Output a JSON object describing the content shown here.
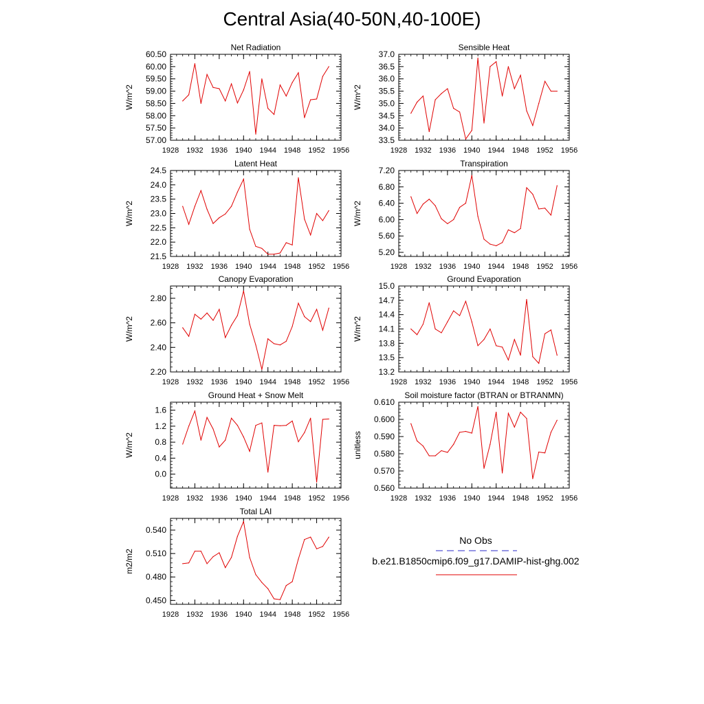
{
  "page": {
    "title": "Central Asia(40-50N,40-100E)"
  },
  "legend": {
    "obs_label": "No Obs",
    "obs_color": "#2b2bc8",
    "model_label": "b.e21.B1850cmip6.f09_g17.DAMIP-hist-ghg.002",
    "model_color": "#e00000"
  },
  "chart_data": [
    {
      "type": "line",
      "title": "Net Radiation",
      "ylabel": "W/m^2",
      "xlim": [
        1928,
        1956
      ],
      "ylim": [
        57.0,
        60.5
      ],
      "xticks": [
        1928,
        1932,
        1936,
        1940,
        1944,
        1948,
        1952,
        1956
      ],
      "yticks": [
        "57.00",
        "57.50",
        "58.00",
        "58.50",
        "59.00",
        "59.50",
        "60.00",
        "60.50"
      ],
      "x": [
        1930,
        1931,
        1932,
        1933,
        1934,
        1935,
        1936,
        1937,
        1938,
        1939,
        1940,
        1941,
        1942,
        1943,
        1944,
        1945,
        1946,
        1947,
        1948,
        1949,
        1950,
        1951,
        1952,
        1953,
        1954
      ],
      "values": [
        58.6,
        58.85,
        60.12,
        58.5,
        59.68,
        59.15,
        59.1,
        58.6,
        59.3,
        58.52,
        59.05,
        59.8,
        57.25,
        59.5,
        58.3,
        58.05,
        59.25,
        58.8,
        59.35,
        59.75,
        57.92,
        58.65,
        58.68,
        59.6,
        60.0
      ],
      "color": "#e00000"
    },
    {
      "type": "line",
      "title": "Sensible Heat",
      "ylabel": "W/m^2",
      "xlim": [
        1928,
        1956
      ],
      "ylim": [
        33.5,
        37.0
      ],
      "xticks": [
        1928,
        1932,
        1936,
        1940,
        1944,
        1948,
        1952,
        1956
      ],
      "yticks": [
        "33.5",
        "34.0",
        "34.5",
        "35.0",
        "35.5",
        "36.0",
        "36.5",
        "37.0"
      ],
      "x": [
        1930,
        1931,
        1932,
        1933,
        1934,
        1935,
        1936,
        1937,
        1938,
        1939,
        1940,
        1941,
        1942,
        1943,
        1944,
        1945,
        1946,
        1947,
        1948,
        1949,
        1950,
        1951,
        1952,
        1953,
        1954
      ],
      "values": [
        34.6,
        35.05,
        35.3,
        33.85,
        35.15,
        35.4,
        35.6,
        34.8,
        34.65,
        33.55,
        33.9,
        36.85,
        34.2,
        36.5,
        36.7,
        35.3,
        36.5,
        35.6,
        36.15,
        34.7,
        34.1,
        35.0,
        35.9,
        35.5,
        35.5
      ],
      "color": "#e00000"
    },
    {
      "type": "line",
      "title": "Latent Heat",
      "ylabel": "W/m^2",
      "xlim": [
        1928,
        1956
      ],
      "ylim": [
        21.5,
        24.5
      ],
      "xticks": [
        1928,
        1932,
        1936,
        1940,
        1944,
        1948,
        1952,
        1956
      ],
      "yticks": [
        "21.5",
        "22.0",
        "22.5",
        "23.0",
        "23.5",
        "24.0",
        "24.5"
      ],
      "x": [
        1930,
        1931,
        1932,
        1933,
        1934,
        1935,
        1936,
        1937,
        1938,
        1939,
        1940,
        1941,
        1942,
        1943,
        1944,
        1945,
        1946,
        1947,
        1948,
        1949,
        1950,
        1951,
        1952,
        1953,
        1954
      ],
      "values": [
        23.25,
        22.62,
        23.25,
        23.8,
        23.15,
        22.65,
        22.85,
        22.98,
        23.25,
        23.75,
        24.2,
        22.45,
        21.85,
        21.78,
        21.58,
        21.58,
        21.62,
        21.98,
        21.9,
        24.25,
        22.8,
        22.25,
        23.0,
        22.75,
        23.1
      ],
      "color": "#e00000"
    },
    {
      "type": "line",
      "title": "Transpiration",
      "ylabel": "W/m^2",
      "xlim": [
        1928,
        1956
      ],
      "ylim": [
        5.1,
        7.2
      ],
      "xticks": [
        1928,
        1932,
        1936,
        1940,
        1944,
        1948,
        1952,
        1956
      ],
      "yticks": [
        "5.20",
        "5.60",
        "6.00",
        "6.40",
        "6.80",
        "7.20"
      ],
      "x": [
        1930,
        1931,
        1932,
        1933,
        1934,
        1935,
        1936,
        1937,
        1938,
        1939,
        1940,
        1941,
        1942,
        1943,
        1944,
        1945,
        1946,
        1947,
        1948,
        1949,
        1950,
        1951,
        1952,
        1953,
        1954
      ],
      "values": [
        6.56,
        6.15,
        6.38,
        6.5,
        6.34,
        6.02,
        5.9,
        6.0,
        6.3,
        6.4,
        7.08,
        6.08,
        5.52,
        5.4,
        5.36,
        5.44,
        5.75,
        5.68,
        5.78,
        6.78,
        6.62,
        6.26,
        6.28,
        6.11,
        6.83
      ],
      "color": "#e00000"
    },
    {
      "type": "line",
      "title": "Canopy Evaporation",
      "ylabel": "W/m^2",
      "xlim": [
        1928,
        1956
      ],
      "ylim": [
        2.2,
        2.9
      ],
      "xticks": [
        1928,
        1932,
        1936,
        1940,
        1944,
        1948,
        1952,
        1956
      ],
      "yticks": [
        "2.20",
        "2.40",
        "2.60",
        "2.80"
      ],
      "x": [
        1930,
        1931,
        1932,
        1933,
        1934,
        1935,
        1936,
        1937,
        1938,
        1939,
        1940,
        1941,
        1942,
        1943,
        1944,
        1945,
        1946,
        1947,
        1948,
        1949,
        1950,
        1951,
        1952,
        1953,
        1954
      ],
      "values": [
        2.56,
        2.49,
        2.67,
        2.63,
        2.68,
        2.62,
        2.71,
        2.48,
        2.58,
        2.66,
        2.86,
        2.59,
        2.42,
        2.22,
        2.47,
        2.43,
        2.42,
        2.45,
        2.57,
        2.76,
        2.65,
        2.61,
        2.71,
        2.54,
        2.72
      ],
      "color": "#e00000"
    },
    {
      "type": "line",
      "title": "Ground Evaporation",
      "ylabel": "W/m^2",
      "xlim": [
        1928,
        1956
      ],
      "ylim": [
        13.2,
        15.0
      ],
      "xticks": [
        1928,
        1932,
        1936,
        1940,
        1944,
        1948,
        1952,
        1956
      ],
      "yticks": [
        "13.2",
        "13.5",
        "13.8",
        "14.1",
        "14.4",
        "14.7",
        "15.0"
      ],
      "x": [
        1930,
        1931,
        1932,
        1933,
        1934,
        1935,
        1936,
        1937,
        1938,
        1939,
        1940,
        1941,
        1942,
        1943,
        1944,
        1945,
        1946,
        1947,
        1948,
        1949,
        1950,
        1951,
        1952,
        1953,
        1954
      ],
      "values": [
        14.1,
        13.98,
        14.2,
        14.65,
        14.1,
        14.02,
        14.25,
        14.48,
        14.38,
        14.68,
        14.25,
        13.75,
        13.88,
        14.1,
        13.75,
        13.72,
        13.45,
        13.88,
        13.55,
        14.72,
        13.52,
        13.38,
        14.0,
        14.08,
        13.55
      ],
      "color": "#e00000"
    },
    {
      "type": "line",
      "title": "Ground Heat + Snow Melt",
      "ylabel": "W/m^2",
      "xlim": [
        1928,
        1956
      ],
      "ylim": [
        -0.35,
        1.8
      ],
      "xticks": [
        1928,
        1932,
        1936,
        1940,
        1944,
        1948,
        1952,
        1956
      ],
      "yticks": [
        "0.0",
        "0.4",
        "0.8",
        "1.2",
        "1.6"
      ],
      "x": [
        1930,
        1931,
        1932,
        1933,
        1934,
        1935,
        1936,
        1937,
        1938,
        1939,
        1940,
        1941,
        1942,
        1943,
        1944,
        1945,
        1946,
        1947,
        1948,
        1949,
        1950,
        1951,
        1952,
        1953,
        1954
      ],
      "values": [
        0.75,
        1.2,
        1.58,
        0.85,
        1.42,
        1.13,
        0.68,
        0.85,
        1.4,
        1.22,
        0.93,
        0.57,
        1.22,
        1.28,
        0.05,
        1.22,
        1.21,
        1.22,
        1.33,
        0.81,
        1.04,
        1.4,
        -0.2,
        1.37,
        1.38
      ],
      "color": "#e00000"
    },
    {
      "type": "line",
      "title": "Soil moisture factor (BTRAN or BTRANMN)",
      "ylabel": "unitless",
      "xlim": [
        1928,
        1956
      ],
      "ylim": [
        0.56,
        0.61
      ],
      "xticks": [
        1928,
        1932,
        1936,
        1940,
        1944,
        1948,
        1952,
        1956
      ],
      "yticks": [
        "0.560",
        "0.570",
        "0.580",
        "0.590",
        "0.600",
        "0.610"
      ],
      "x": [
        1930,
        1931,
        1932,
        1933,
        1934,
        1935,
        1936,
        1937,
        1938,
        1939,
        1940,
        1941,
        1942,
        1943,
        1944,
        1945,
        1946,
        1947,
        1948,
        1949,
        1950,
        1951,
        1952,
        1953,
        1954
      ],
      "values": [
        0.5975,
        0.5875,
        0.5845,
        0.5788,
        0.5788,
        0.5818,
        0.5808,
        0.5855,
        0.5925,
        0.593,
        0.592,
        0.6075,
        0.5715,
        0.5855,
        0.6042,
        0.5688,
        0.6035,
        0.5955,
        0.6042,
        0.6005,
        0.5655,
        0.581,
        0.5805,
        0.5925,
        0.5995
      ],
      "color": "#e00000"
    },
    {
      "type": "line",
      "title": "Total LAI",
      "ylabel": "m2/m2",
      "xlim": [
        1928,
        1956
      ],
      "ylim": [
        0.445,
        0.555
      ],
      "xticks": [
        1928,
        1932,
        1936,
        1940,
        1944,
        1948,
        1952,
        1956
      ],
      "yticks": [
        "0.450",
        "0.480",
        "0.510",
        "0.540"
      ],
      "x": [
        1930,
        1931,
        1932,
        1933,
        1934,
        1935,
        1936,
        1937,
        1938,
        1939,
        1940,
        1941,
        1942,
        1943,
        1944,
        1945,
        1946,
        1947,
        1948,
        1949,
        1950,
        1951,
        1952,
        1953,
        1954
      ],
      "values": [
        0.497,
        0.498,
        0.513,
        0.513,
        0.497,
        0.506,
        0.511,
        0.492,
        0.505,
        0.532,
        0.551,
        0.505,
        0.483,
        0.473,
        0.465,
        0.452,
        0.451,
        0.469,
        0.474,
        0.503,
        0.528,
        0.531,
        0.516,
        0.519,
        0.531
      ],
      "color": "#e00000"
    }
  ]
}
